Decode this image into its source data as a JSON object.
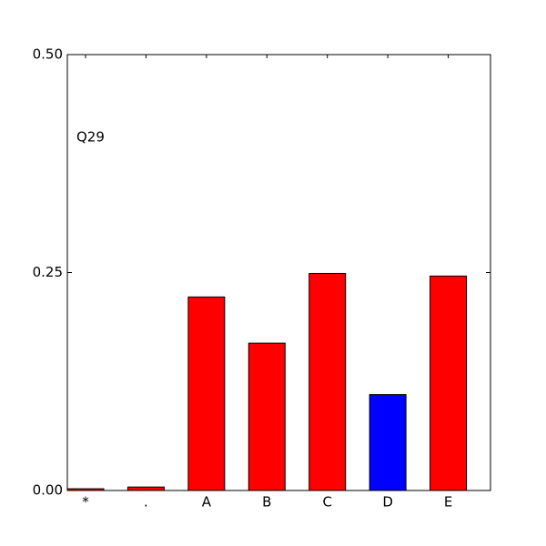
{
  "chart_data": {
    "type": "bar",
    "annotation": "Q29",
    "categories": [
      "*",
      ".",
      "A",
      "B",
      "C",
      "D",
      "E"
    ],
    "values": [
      0.002,
      0.004,
      0.222,
      0.169,
      0.249,
      0.11,
      0.246
    ],
    "colors": [
      "#ff0000",
      "#ff0000",
      "#ff0000",
      "#ff0000",
      "#ff0000",
      "#0000ff",
      "#ff0000"
    ],
    "ylim": [
      0,
      0.5
    ],
    "yticks": [
      {
        "value": 0,
        "label": "0.00"
      },
      0.25,
      {
        "value": 0.5,
        "label": "0.50"
      }
    ],
    "grid": false
  }
}
